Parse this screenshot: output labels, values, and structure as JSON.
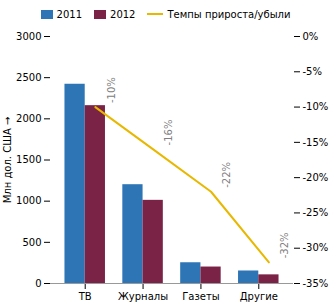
{
  "chart_data": {
    "type": "bar",
    "categories": [
      "ТВ",
      "Журналы",
      "Газеты",
      "Другие"
    ],
    "series": [
      {
        "name": "2011",
        "type": "bar",
        "color": "#2E75B6",
        "values": [
          2420,
          1200,
          252,
          152
        ]
      },
      {
        "name": "2012",
        "type": "bar",
        "color": "#7B2346",
        "values": [
          2160,
          1010,
          200,
          105
        ]
      },
      {
        "name": "Темпы прироста/убыли",
        "type": "line",
        "axis": "y2",
        "color": "#E8B800",
        "values": [
          -10,
          -16,
          -22,
          -32
        ],
        "value_labels": [
          "-10%",
          "-16%",
          "-22%",
          "-32%"
        ],
        "data_labels": true
      }
    ],
    "ylabel": "Млн дол. США",
    "ylim": [
      0,
      3000
    ],
    "yticks": [
      0,
      500,
      1000,
      1500,
      2000,
      2500,
      3000
    ],
    "y2lim": [
      -35,
      0
    ],
    "y2ticks": [
      {
        "value": 0,
        "label": "0%"
      },
      {
        "value": -5,
        "label": "-5%"
      },
      {
        "value": -10,
        "label": "-10%"
      },
      {
        "value": -15,
        "label": "-15%"
      },
      {
        "value": -20,
        "label": "-20%"
      },
      {
        "value": -25,
        "label": "-25%"
      },
      {
        "value": -30,
        "label": "-30%"
      },
      {
        "value": -35,
        "label": "-35%"
      }
    ],
    "legend": "top",
    "grid": false
  }
}
